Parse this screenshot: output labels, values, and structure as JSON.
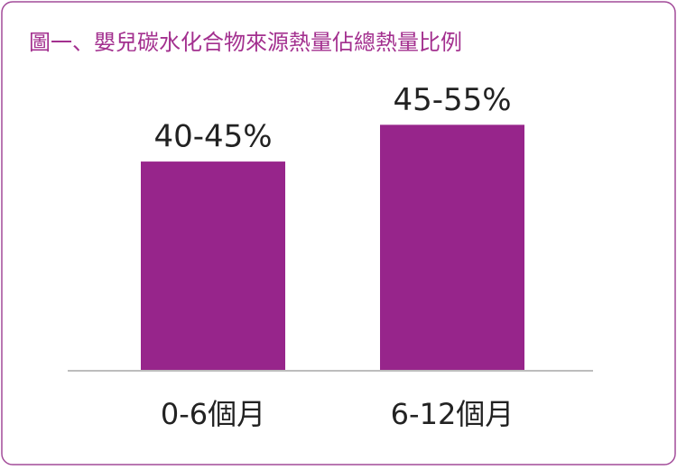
{
  "chart_data": {
    "type": "bar",
    "title": "圖一、嬰兒碳水化合物來源熱量佔總熱量比例",
    "categories": [
      "0-6個月",
      "6-12個月"
    ],
    "values": [
      42.5,
      50
    ],
    "value_labels": [
      "40-45%",
      "45-55%"
    ],
    "color": "#97258b",
    "ylim": [
      0,
      60
    ]
  }
}
